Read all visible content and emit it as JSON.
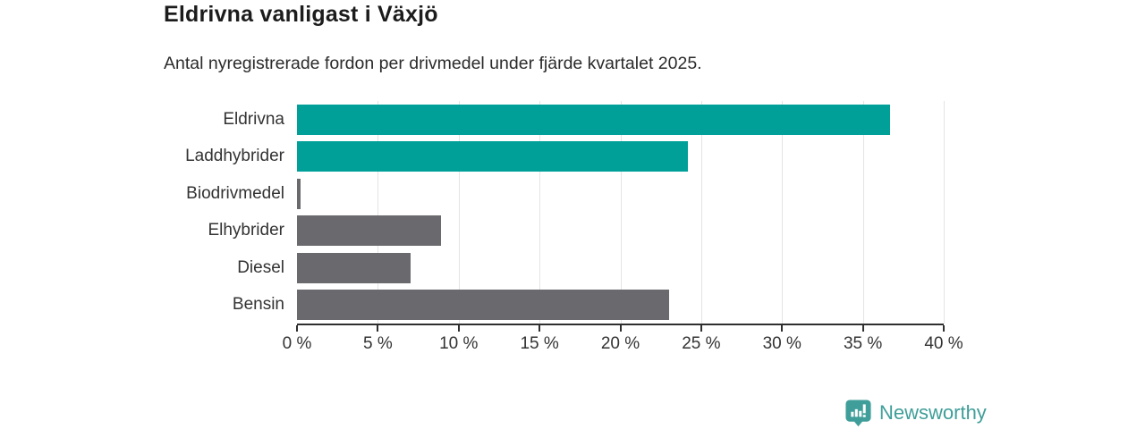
{
  "header": {
    "title": "Eldrivna vanligast i Växjö",
    "subtitle": "Antal nyregistrerade fordon per drivmedel under fjärde kvartalet 2025."
  },
  "chart_data": {
    "type": "bar",
    "orientation": "horizontal",
    "title": "Eldrivna vanligast i Växjö",
    "subtitle": "Antal nyregistrerade fordon per drivmedel under fjärde kvartalet 2025.",
    "categories": [
      "Eldrivna",
      "Laddhybrider",
      "Biodrivmedel",
      "Elhybrider",
      "Diesel",
      "Bensin"
    ],
    "values": [
      36.7,
      24.2,
      0.2,
      8.9,
      7.0,
      23.0
    ],
    "unit": "%",
    "bar_colors": [
      "#00a099",
      "#00a099",
      "#6a6a6e",
      "#6a6a6e",
      "#6a6a6e",
      "#6a6a6e"
    ],
    "xlim": [
      0,
      40
    ],
    "x_ticks": [
      0,
      5,
      10,
      15,
      20,
      25,
      30,
      35,
      40
    ],
    "x_tick_labels": [
      "0 %",
      "5 %",
      "10 %",
      "15 %",
      "20 %",
      "25 %",
      "30 %",
      "35 %",
      "40 %"
    ],
    "grid": "vertical",
    "legend": "none"
  },
  "colors": {
    "teal": "#00a099",
    "gray": "#6a6a6e",
    "grid": "#e4e4e4",
    "axis": "#2f2f2f",
    "logo": "#3f9e99"
  },
  "branding": {
    "logo_label": "Newsworthy"
  }
}
